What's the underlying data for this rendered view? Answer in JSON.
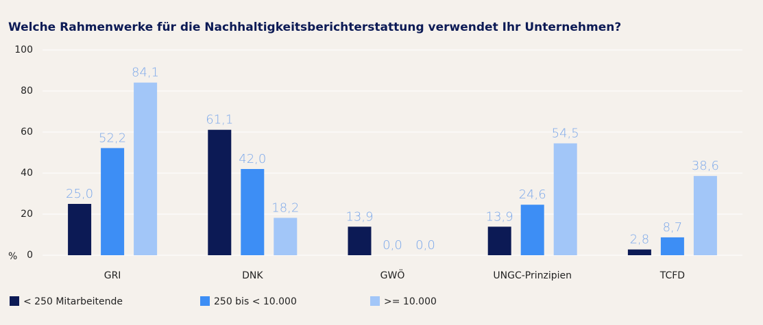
{
  "chart_data": {
    "type": "bar",
    "title": "Welche Rahmenwerke für die Nachhaltigkeitsberichterstattung verwendet Ihr Unternehmen?",
    "y_label": "%",
    "categories": [
      "GRI",
      "DNK",
      "GWÖ",
      "UNGC-Prinzipien",
      "TCFD"
    ],
    "series": [
      {
        "name": "< 250 Mitarbeitende",
        "color": "#0c1a55",
        "values": [
          25.0,
          61.1,
          13.9,
          13.9,
          2.8
        ],
        "value_labels": [
          "25,0",
          "61,1",
          "13,9",
          "13,9",
          "2,8"
        ]
      },
      {
        "name": "250 bis < 10.000",
        "color": "#3d8ef5",
        "values": [
          52.2,
          42.0,
          0.0,
          24.6,
          8.7
        ],
        "value_labels": [
          "52,2",
          "42,0",
          "0,0",
          "24,6",
          "8,7"
        ]
      },
      {
        "name": ">= 10.000",
        "color": "#a2c6f8",
        "values": [
          84.1,
          18.2,
          0.0,
          54.5,
          38.6
        ],
        "value_labels": [
          "84,1",
          "18,2",
          "0,0",
          "54,5",
          "38,6"
        ]
      }
    ],
    "ylim": [
      0,
      100
    ],
    "yticks": [
      0,
      20,
      40,
      60,
      80,
      100
    ],
    "grid": true,
    "legend": "bottom"
  }
}
